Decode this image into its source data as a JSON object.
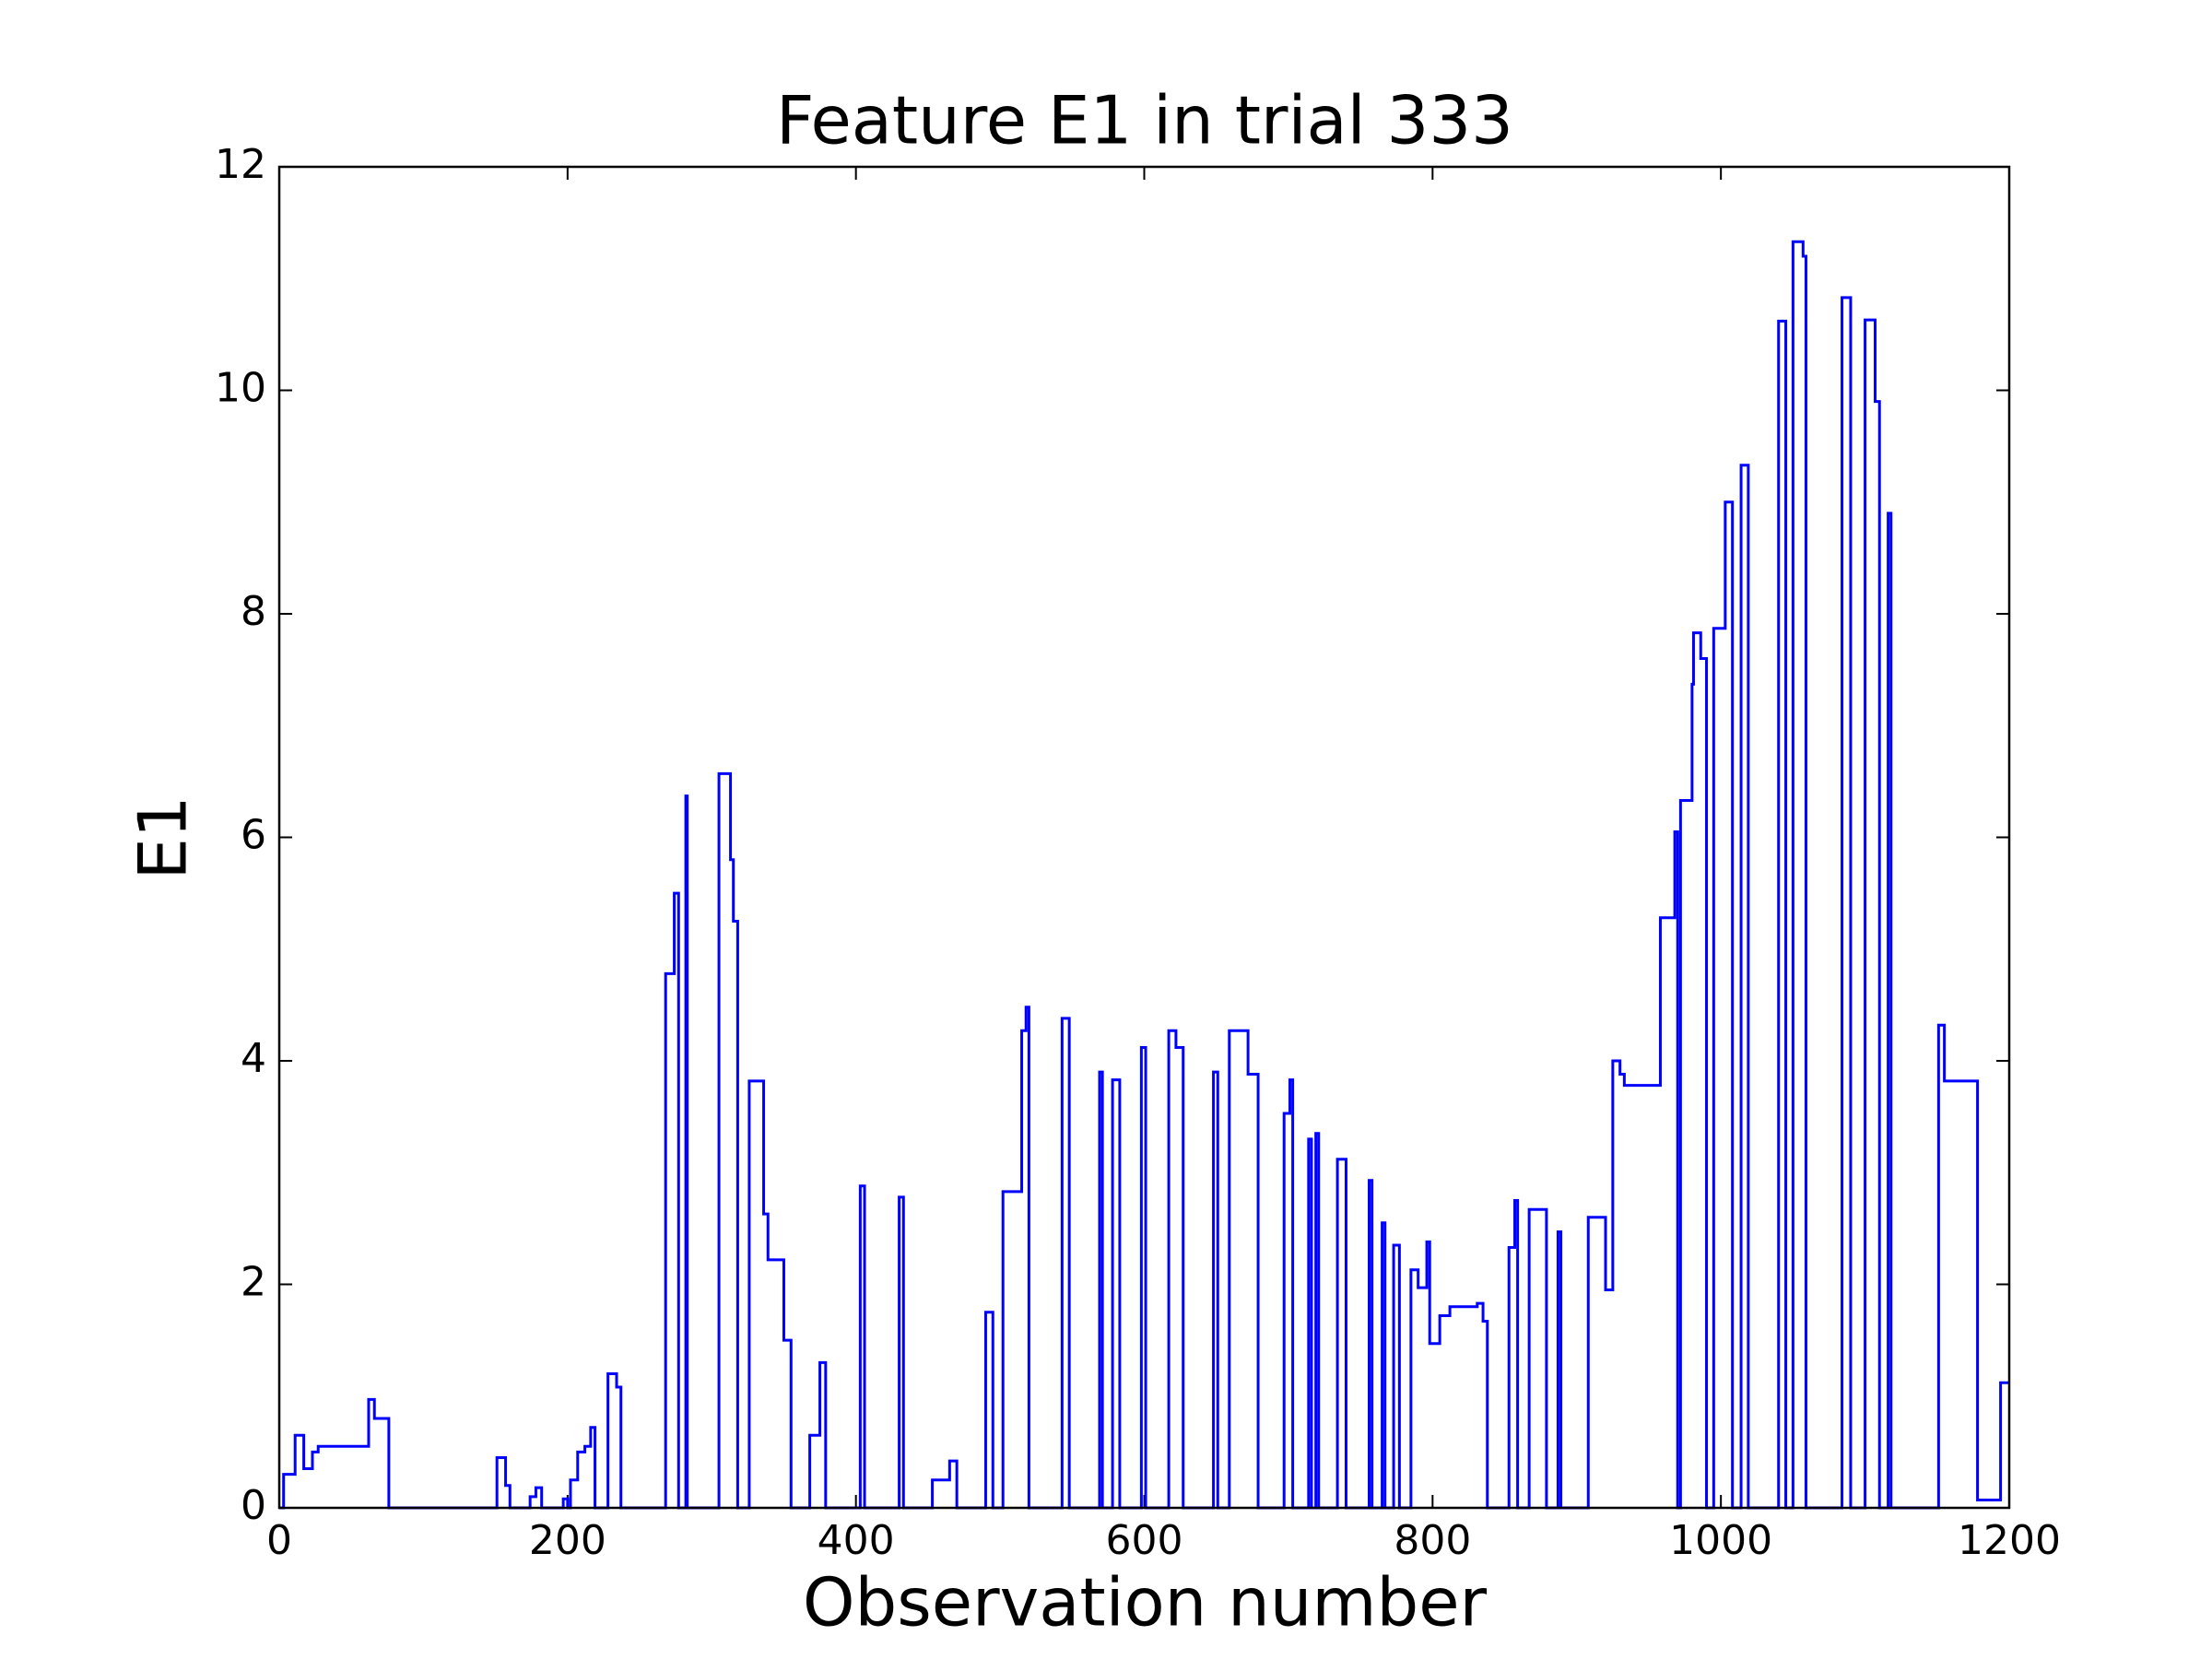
{
  "chart_data": {
    "type": "line",
    "title": "Feature E1 in trial 333",
    "x_label": "Observation number",
    "y_label": "E1",
    "color": "#0000ff",
    "grid": false,
    "xlim": [
      0,
      1200
    ],
    "xticks": [
      0,
      200,
      400,
      600,
      800,
      1000,
      1200
    ],
    "ylim": [
      0,
      12
    ],
    "yticks": [
      0,
      2,
      4,
      6,
      8,
      10,
      12
    ],
    "x": [
      0,
      3,
      3,
      11,
      11,
      17,
      17,
      23,
      23,
      27,
      27,
      62,
      62,
      66,
      66,
      76,
      76,
      151,
      151,
      157,
      157,
      160,
      160,
      174,
      174,
      178,
      178,
      182,
      182,
      197,
      197,
      200,
      200,
      202,
      202,
      207,
      207,
      212,
      212,
      216,
      216,
      219,
      219,
      228,
      228,
      234,
      234,
      237,
      237,
      268,
      268,
      274,
      274,
      277,
      277,
      282,
      282,
      283,
      283,
      305,
      305,
      313,
      313,
      315,
      315,
      318,
      318,
      326,
      326,
      336,
      336,
      339,
      339,
      350,
      350,
      355,
      355,
      368,
      368,
      375,
      375,
      379,
      379,
      403,
      403,
      406,
      406,
      430,
      430,
      433,
      433,
      453,
      453,
      465,
      465,
      470,
      470,
      490,
      490,
      495,
      495,
      502,
      502,
      515,
      515,
      518,
      518,
      520,
      520,
      543,
      543,
      548,
      548,
      569,
      569,
      571,
      571,
      578,
      578,
      583,
      583,
      598,
      598,
      601,
      601,
      617,
      617,
      622,
      622,
      627,
      627,
      648,
      648,
      651,
      651,
      659,
      659,
      672,
      672,
      679,
      679,
      697,
      697,
      701,
      701,
      703,
      703,
      714,
      714,
      716,
      716,
      719,
      719,
      721,
      721,
      734,
      734,
      740,
      740,
      756,
      756,
      758,
      758,
      765,
      765,
      767,
      767,
      773,
      773,
      777,
      777,
      785,
      785,
      790,
      790,
      796,
      796,
      798,
      798,
      805,
      805,
      812,
      812,
      831,
      831,
      835,
      835,
      838,
      838,
      853,
      853,
      857,
      857,
      859,
      859,
      867,
      867,
      879,
      879,
      887,
      887,
      889,
      889,
      908,
      908,
      920,
      920,
      925,
      925,
      930,
      930,
      933,
      933,
      958,
      958,
      968,
      968,
      970,
      970,
      972,
      972,
      980,
      980,
      981,
      981,
      986,
      986,
      990,
      990,
      995,
      995,
      1003,
      1003,
      1008,
      1008,
      1014,
      1014,
      1019,
      1019,
      1040,
      1040,
      1045,
      1045,
      1050,
      1050,
      1057,
      1057,
      1059,
      1059,
      1084,
      1084,
      1090,
      1090,
      1100,
      1100,
      1107,
      1107,
      1110,
      1110,
      1116,
      1116,
      1118,
      1118,
      1151,
      1151,
      1155,
      1155,
      1178,
      1178,
      1194,
      1194,
      1200
    ],
    "values": [
      0,
      0,
      0.3,
      0.3,
      0.65,
      0.65,
      0.35,
      0.35,
      0.5,
      0.5,
      0.55,
      0.55,
      0.97,
      0.97,
      0.8,
      0.8,
      0,
      0,
      0.45,
      0.45,
      0.2,
      0.2,
      0,
      0,
      0.1,
      0.1,
      0.18,
      0.18,
      0,
      0,
      0.08,
      0.08,
      0,
      0,
      0.25,
      0.25,
      0.5,
      0.5,
      0.55,
      0.55,
      0.72,
      0.72,
      0,
      0,
      1.2,
      1.2,
      1.08,
      1.08,
      0,
      0,
      4.78,
      4.78,
      5.5,
      5.5,
      0,
      0,
      6.37,
      6.37,
      0,
      0,
      6.57,
      6.57,
      5.8,
      5.8,
      5.25,
      5.25,
      0,
      0,
      3.82,
      3.82,
      2.63,
      2.63,
      2.22,
      2.22,
      1.5,
      1.5,
      0,
      0,
      0.65,
      0.65,
      1.3,
      1.3,
      0,
      0,
      2.88,
      2.88,
      0,
      0,
      2.78,
      2.78,
      0,
      0,
      0.25,
      0.25,
      0.42,
      0.42,
      0,
      0,
      1.75,
      1.75,
      0,
      0,
      2.83,
      2.83,
      4.27,
      4.27,
      4.48,
      4.48,
      0,
      0,
      4.38,
      4.38,
      0,
      0,
      3.9,
      3.9,
      0,
      0,
      3.83,
      3.83,
      0,
      0,
      4.12,
      4.12,
      0,
      0,
      4.27,
      4.27,
      4.12,
      4.12,
      0,
      0,
      3.9,
      3.9,
      0,
      0,
      4.27,
      4.27,
      3.88,
      3.88,
      0,
      0,
      3.53,
      3.53,
      3.83,
      3.83,
      0,
      0,
      3.3,
      3.3,
      0,
      0,
      3.35,
      3.35,
      0,
      0,
      3.12,
      3.12,
      0,
      0,
      2.93,
      2.93,
      0,
      0,
      2.55,
      2.55,
      0,
      0,
      2.35,
      2.35,
      0,
      0,
      2.13,
      2.13,
      1.97,
      1.97,
      2.38,
      2.38,
      1.47,
      1.47,
      1.72,
      1.72,
      1.8,
      1.8,
      1.83,
      1.83,
      1.67,
      1.67,
      0,
      0,
      2.33,
      2.33,
      2.75,
      2.75,
      0,
      0,
      2.67,
      2.67,
      0,
      0,
      2.47,
      2.47,
      0,
      0,
      2.6,
      2.6,
      1.95,
      1.95,
      4,
      4,
      3.88,
      3.88,
      3.78,
      3.78,
      5.28,
      5.28,
      6.05,
      6.05,
      0,
      0,
      6.33,
      6.33,
      7.37,
      7.37,
      7.83,
      7.83,
      7.6,
      7.6,
      0,
      0,
      7.87,
      7.87,
      9,
      9,
      0,
      0,
      9.33,
      9.33,
      0,
      0,
      10.62,
      10.62,
      0,
      0,
      11.33,
      11.33,
      11.2,
      11.2,
      0,
      0,
      10.83,
      10.83,
      0,
      0,
      10.63,
      10.63,
      9.9,
      9.9,
      0,
      0,
      8.9,
      8.9,
      0,
      0,
      4.32,
      4.32,
      3.82,
      3.82,
      0.07,
      0.07,
      1.12,
      1.12
    ]
  }
}
